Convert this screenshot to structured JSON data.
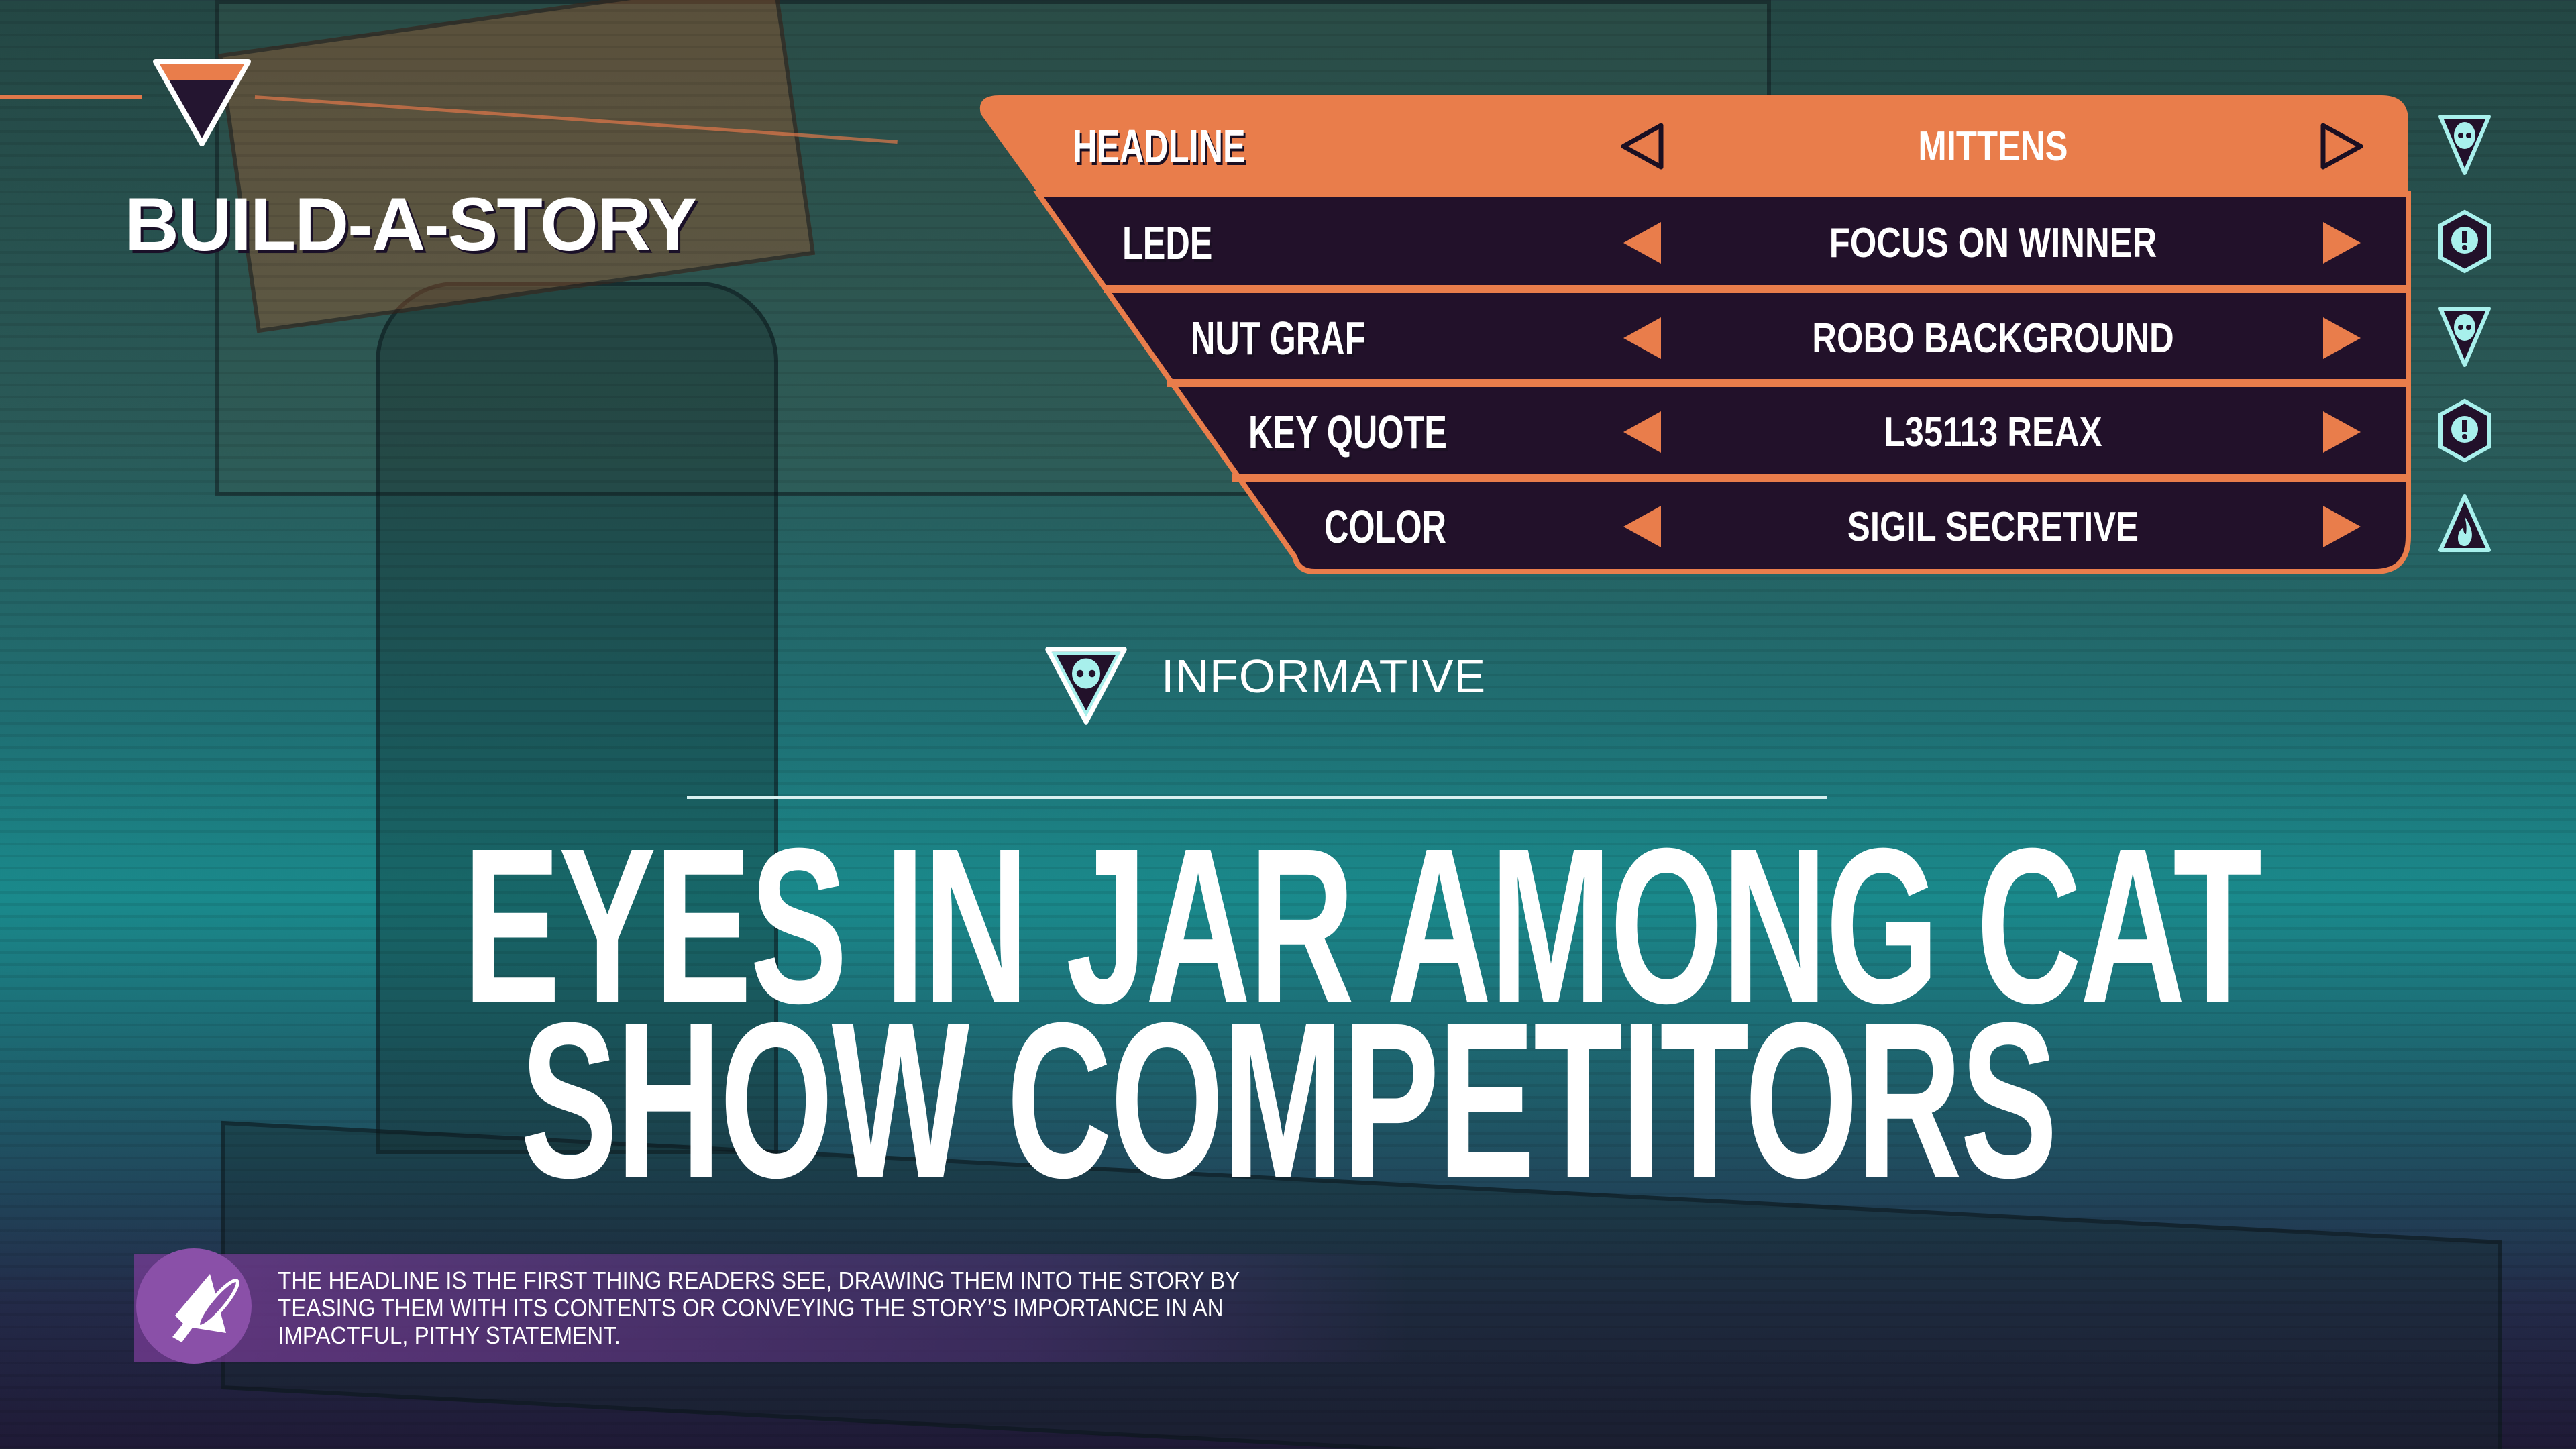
{
  "app": {
    "title": "BUILD-A-STORY"
  },
  "menu": {
    "rows": [
      {
        "label": "HEADLINE",
        "value": "MITTENS",
        "selected": true,
        "icon": "alien-shield-icon"
      },
      {
        "label": "LEDE",
        "value": "FOCUS ON WINNER",
        "selected": false,
        "icon": "exclamation-hexagon-icon"
      },
      {
        "label": "NUT GRAF",
        "value": "ROBO BACKGROUND",
        "selected": false,
        "icon": "alien-shield-icon"
      },
      {
        "label": "KEY QUOTE",
        "value": "L35113 REAX",
        "selected": false,
        "icon": "exclamation-hexagon-icon"
      },
      {
        "label": "COLOR",
        "value": "SIGIL SECRETIVE",
        "selected": false,
        "icon": "flame-triangle-icon"
      }
    ]
  },
  "tone": {
    "label": "INFORMATIVE",
    "icon": "alien-shield-icon"
  },
  "headline": {
    "line1": "EYES IN JAR AMONG CAT",
    "line2": "SHOW COMPETITORS"
  },
  "tip": {
    "icon": "megaphone-icon",
    "text": "THE HEADLINE IS THE FIRST THING READERS SEE, DRAWING THEM INTO THE STORY BY TEASING THEM WITH ITS CONTENTS OR CONVEYING THE STORY’S IMPORTANCE IN AN IMPACTFUL, PITHY STATEMENT."
  },
  "colors": {
    "accent": "#e97d4b",
    "panel": "#22112a",
    "icon": "#a8f0ec",
    "tip": "#8a50a8"
  }
}
